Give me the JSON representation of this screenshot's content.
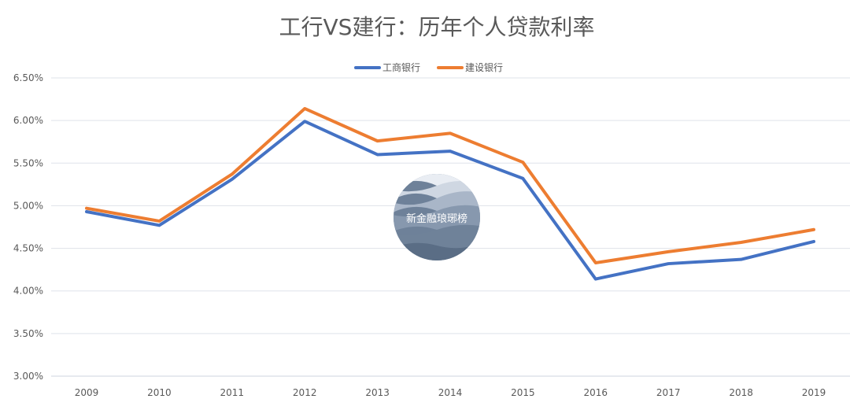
{
  "chart_data": {
    "type": "line",
    "title": "工行VS建行：历年个人贷款利率",
    "categories": [
      "2009",
      "2010",
      "2011",
      "2012",
      "2013",
      "2014",
      "2015",
      "2016",
      "2017",
      "2018",
      "2019"
    ],
    "series": [
      {
        "name": "工商银行",
        "color": "#4472c4",
        "values": [
          4.93,
          4.77,
          5.31,
          5.99,
          5.6,
          5.64,
          5.32,
          4.14,
          4.32,
          4.37,
          4.58
        ]
      },
      {
        "name": "建设银行",
        "color": "#ed7d31",
        "values": [
          4.97,
          4.82,
          5.37,
          6.14,
          5.76,
          5.85,
          5.51,
          4.33,
          4.46,
          4.57,
          4.72
        ]
      }
    ],
    "ylim": [
      3.0,
      6.5
    ],
    "yticks": [
      3.0,
      3.5,
      4.0,
      4.5,
      5.0,
      5.5,
      6.0,
      6.5
    ],
    "ytick_labels": [
      "3.00%",
      "3.50%",
      "4.00%",
      "4.50%",
      "5.00%",
      "5.50%",
      "6.00%",
      "6.50%"
    ],
    "grid": true,
    "legend_position": "top-center",
    "watermark": "新金融琅琊榜"
  }
}
